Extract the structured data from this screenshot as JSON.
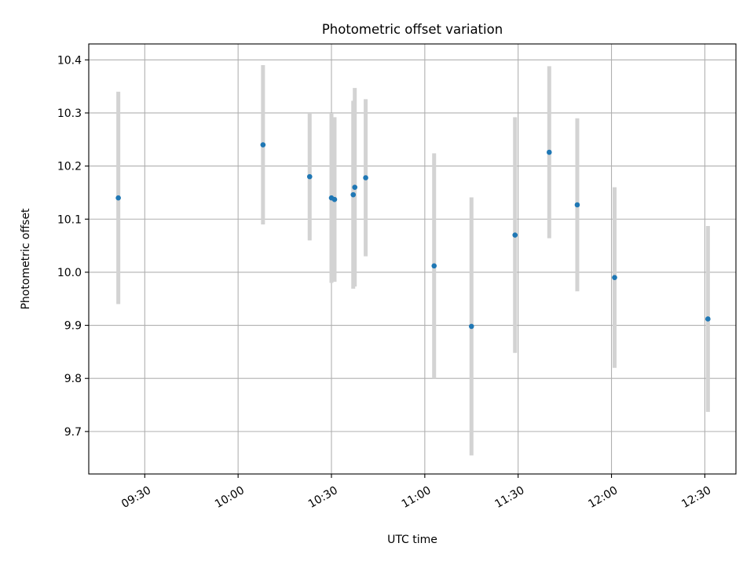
{
  "chart_data": {
    "type": "scatter",
    "title": "Photometric offset variation",
    "xlabel": "UTC time",
    "ylabel": "Photometric offset",
    "x_unit": "UTC time (HH:MM)",
    "xlim": [
      "09:12",
      "12:40"
    ],
    "ylim": [
      9.62,
      10.43
    ],
    "x_ticks": [
      "09:30",
      "10:00",
      "10:30",
      "11:00",
      "11:30",
      "12:00",
      "12:30"
    ],
    "y_ticks": [
      9.7,
      9.8,
      9.9,
      10.0,
      10.1,
      10.2,
      10.3,
      10.4
    ],
    "y_tick_labels": [
      "9.7",
      "9.8",
      "9.9",
      "10.0",
      "10.1",
      "10.2",
      "10.3",
      "10.4"
    ],
    "grid": true,
    "legend": "none",
    "colors": {
      "points": "#1f77b4",
      "errorbars": "#d3d3d3",
      "grid": "#b0b0b0"
    },
    "points": [
      {
        "x": "09:21:30",
        "y": 10.14,
        "err": 0.2
      },
      {
        "x": "10:08",
        "y": 10.24,
        "err": 0.15
      },
      {
        "x": "10:23",
        "y": 10.18,
        "err": 0.12
      },
      {
        "x": "10:30",
        "y": 10.14,
        "err": 0.16
      },
      {
        "x": "10:31",
        "y": 10.137,
        "err": 0.155
      },
      {
        "x": "10:37",
        "y": 10.146,
        "err": 0.177
      },
      {
        "x": "10:37:30",
        "y": 10.16,
        "err": 0.187
      },
      {
        "x": "10:41",
        "y": 10.178,
        "err": 0.148
      },
      {
        "x": "11:03",
        "y": 10.012,
        "err": 0.212
      },
      {
        "x": "11:15",
        "y": 9.898,
        "err": 0.243
      },
      {
        "x": "11:29",
        "y": 10.07,
        "err": 0.222
      },
      {
        "x": "11:40",
        "y": 10.226,
        "err": 0.162
      },
      {
        "x": "11:49",
        "y": 10.127,
        "err": 0.163
      },
      {
        "x": "12:01",
        "y": 9.99,
        "err": 0.17
      },
      {
        "x": "12:31",
        "y": 9.912,
        "err": 0.175
      }
    ]
  }
}
